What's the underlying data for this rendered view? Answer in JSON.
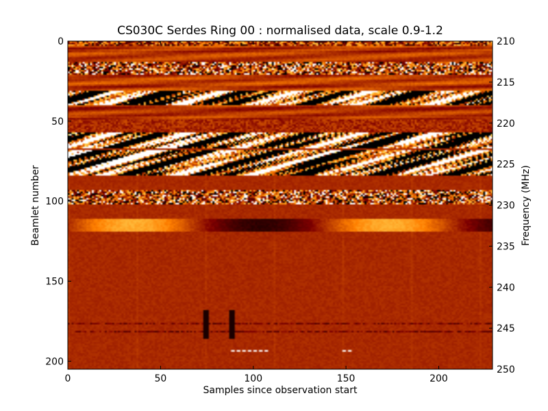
{
  "chart_data": {
    "type": "heatmap",
    "title": "CS030C Serdes Ring 00 : normalised data, scale 0.9-1.2",
    "xlabel": "Samples since observation start",
    "ylabel": "Beamlet number",
    "y2label": "Frequency (MHz)",
    "xlim": [
      0,
      229
    ],
    "ylim": [
      205,
      0
    ],
    "y2lim": [
      250,
      210
    ],
    "color_scale": [
      0.9,
      1.2
    ],
    "colormap": "afmhot",
    "xticks": [
      0,
      50,
      100,
      150,
      200
    ],
    "yticks": [
      0,
      50,
      100,
      150,
      200
    ],
    "y2ticks": [
      210,
      215,
      220,
      225,
      230,
      235,
      240,
      245,
      250
    ],
    "bands": [
      {
        "rows": [
          0,
          3
        ],
        "pattern": "noisy"
      },
      {
        "rows": [
          3,
          13
        ],
        "pattern": "smooth"
      },
      {
        "rows": [
          13,
          21
        ],
        "pattern": "striped"
      },
      {
        "rows": [
          21,
          31
        ],
        "pattern": "smooth"
      },
      {
        "rows": [
          31,
          40
        ],
        "pattern": "high-contrast"
      },
      {
        "rows": [
          40,
          49
        ],
        "pattern": "smooth"
      },
      {
        "rows": [
          49,
          57
        ],
        "pattern": "mild-noise"
      },
      {
        "rows": [
          57,
          67
        ],
        "pattern": "high-contrast"
      },
      {
        "rows": [
          67,
          68
        ],
        "pattern": "flat"
      },
      {
        "rows": [
          68,
          76
        ],
        "pattern": "high-contrast"
      },
      {
        "rows": [
          76,
          84
        ],
        "pattern": "high-contrast"
      },
      {
        "rows": [
          84,
          93
        ],
        "pattern": "flat"
      },
      {
        "rows": [
          93,
          102
        ],
        "pattern": "striped"
      },
      {
        "rows": [
          102,
          111
        ],
        "pattern": "flat"
      },
      {
        "rows": [
          111,
          119
        ],
        "pattern": "wave"
      },
      {
        "rows": [
          119,
          205
        ],
        "pattern": "flat"
      }
    ]
  }
}
